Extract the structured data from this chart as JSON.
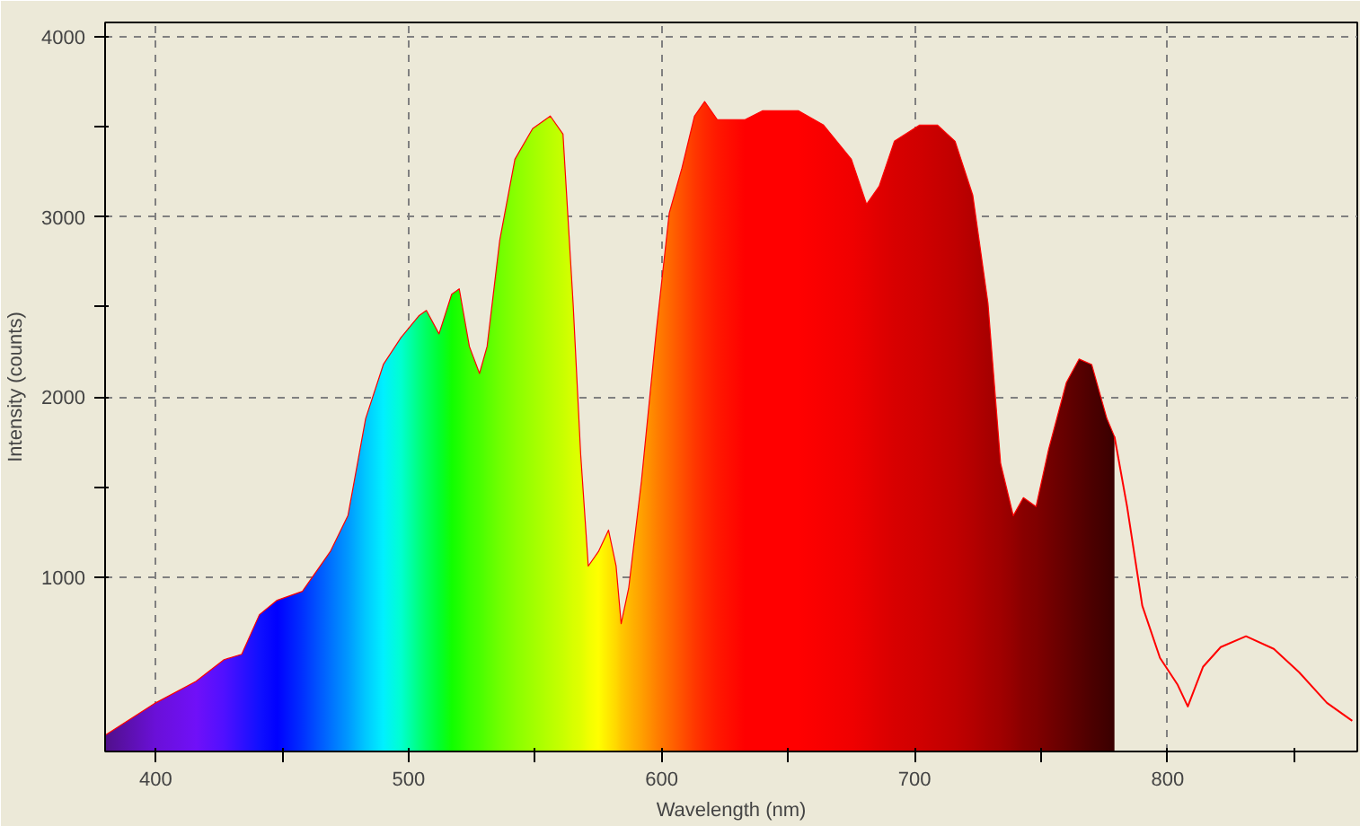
{
  "chart_data": {
    "type": "area",
    "xlabel": "Wavelength (nm)",
    "ylabel": "Intensity (counts)",
    "xlim": [
      380,
      875
    ],
    "ylim": [
      30,
      4080
    ],
    "xticks": [
      400,
      {
        "value": 450,
        "label": null
      },
      500,
      {
        "value": 550,
        "label": null
      },
      600,
      {
        "value": 650,
        "label": null
      },
      700,
      {
        "value": 750,
        "label": null
      },
      800,
      {
        "value": 850,
        "label": null
      }
    ],
    "yticks": [
      1000,
      {
        "value": 1500,
        "label": null
      },
      2000,
      {
        "value": 2500,
        "label": null
      },
      3000,
      {
        "value": 3500,
        "label": null
      },
      4000
    ],
    "grid": true,
    "series": [
      {
        "color": "#ff0000",
        "x": [
          380,
          400,
          416,
          427,
          434,
          441,
          448,
          458,
          469,
          476,
          483,
          490,
          497,
          504,
          507,
          512,
          517,
          520,
          524,
          528,
          531,
          536,
          542,
          549,
          556,
          561,
          565,
          568,
          571,
          575,
          579,
          582,
          584,
          587,
          592,
          598,
          603,
          608,
          613,
          617,
          622,
          633,
          640,
          654,
          664,
          675,
          681,
          686,
          692,
          702,
          709,
          716,
          723,
          729,
          734,
          739,
          743,
          748,
          753,
          760,
          765,
          770,
          776,
          779
        ],
        "values": [
          120,
          300,
          420,
          540,
          570,
          790,
          870,
          920,
          1140,
          1340,
          1880,
          2180,
          2330,
          2450,
          2480,
          2350,
          2570,
          2600,
          2280,
          2130,
          2280,
          2870,
          3320,
          3490,
          3560,
          3460,
          2520,
          1680,
          1060,
          1140,
          1260,
          1060,
          740,
          940,
          1530,
          2380,
          3020,
          3270,
          3560,
          3640,
          3540,
          3540,
          3590,
          3590,
          3510,
          3320,
          3070,
          3170,
          3420,
          3510,
          3510,
          3420,
          3120,
          2520,
          1630,
          1340,
          1440,
          1390,
          1710,
          2080,
          2210,
          2180,
          1880,
          1780
        ],
        "colors": [
          "#50108a",
          "#6a10d8",
          "#7010f8",
          "#5010ff",
          "#3010ff",
          "#1010ff",
          "#0000ff",
          "#0030ff",
          "#0070ff",
          "#0098ff",
          "#00c8ff",
          "#00f0ff",
          "#00ffd0",
          "#00ff80",
          "#00ff60",
          "#00ff30",
          "#10ff00",
          "#20ff00",
          "#38ff00",
          "#48ff00",
          "#58ff00",
          "#70ff00",
          "#88ff00",
          "#a0ff00",
          "#b8ff00",
          "#c8ff00",
          "#d8ff00",
          "#e0ff00",
          "#f0ff00",
          "#ffff00",
          "#ffe800",
          "#ffd800",
          "#ffc800",
          "#ffb800",
          "#ffa000",
          "#ff8000",
          "#ff6800",
          "#ff5000",
          "#ff3800",
          "#ff2800",
          "#ff1800",
          "#ff0000",
          "#ff0000",
          "#ff0000",
          "#f80000",
          "#f00000",
          "#e80000",
          "#e00000",
          "#d80000",
          "#d00000",
          "#c80000",
          "#c00000",
          "#b40000",
          "#a80000",
          "#a00000",
          "#940000",
          "#880000",
          "#800000",
          "#740000",
          "#640000",
          "#580000",
          "#4c0000",
          "#400000",
          "#380000"
        ]
      },
      {
        "type": "line",
        "color": "#ff0000",
        "x": [
          779,
          784,
          790,
          797,
          804,
          808,
          814,
          821,
          831,
          842,
          852,
          863,
          873
        ],
        "values": [
          1780,
          1390,
          840,
          550,
          400,
          280,
          500,
          610,
          670,
          600,
          470,
          300,
          200
        ]
      }
    ]
  }
}
